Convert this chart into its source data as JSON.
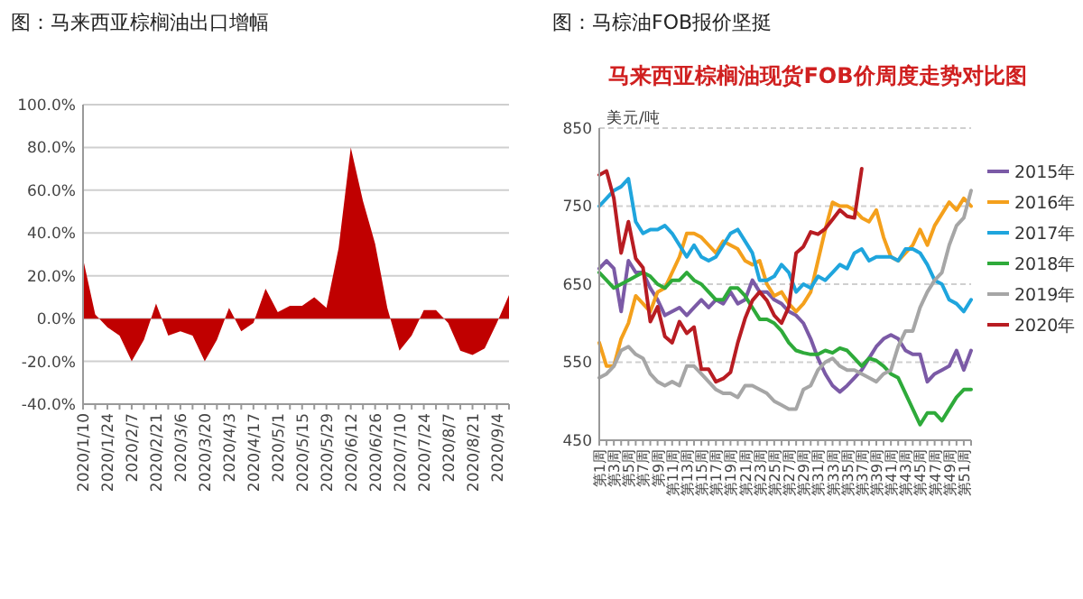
{
  "chart_data": [
    {
      "type": "area",
      "title": "图：马来西亚棕榈油出口增幅",
      "categories": [
        "2020/1/10",
        null,
        "2020/1/24",
        null,
        "2020/2/7",
        null,
        "2020/2/21",
        null,
        "2020/3/6",
        null,
        "2020/3/20",
        null,
        "2020/4/3",
        null,
        "2020/4/17",
        null,
        "2020/5/1",
        null,
        "2020/5/15",
        null,
        "2020/5/29",
        null,
        "2020/6/12",
        null,
        "2020/6/26",
        null,
        "2020/7/10",
        null,
        "2020/7/24",
        null,
        "2020/8/7",
        null,
        "2020/8/21",
        null,
        "2020/9/4",
        null
      ],
      "values": [
        28,
        2,
        -4,
        -8,
        -20,
        -10,
        7,
        -8,
        -6,
        -8,
        -20,
        -10,
        5,
        -6,
        -2,
        14,
        3,
        6,
        6,
        10,
        5,
        33,
        80,
        55,
        35,
        5,
        -15,
        -8,
        4,
        4,
        -2,
        -15,
        -17,
        -14,
        -2,
        11
      ],
      "color": "#c00000",
      "ylim": [
        -40,
        100
      ],
      "yticks": [
        {
          "value": -40,
          "label": "-40.0%"
        },
        {
          "value": -20,
          "label": "-20.0%"
        },
        {
          "value": 0,
          "label": "0.0%"
        },
        {
          "value": 20,
          "label": "20.0%"
        },
        {
          "value": 40,
          "label": "40.0%"
        },
        {
          "value": 60,
          "label": "60.0%"
        },
        {
          "value": 80,
          "label": "80.0%"
        },
        {
          "value": 100,
          "label": "100.0%"
        }
      ],
      "grid": "y"
    },
    {
      "type": "line",
      "title": "图：马棕油FOB报价坚挺",
      "subtitle": "马来西亚棕榈油现货FOB价周度走势对比图",
      "ylabel": "美元/吨",
      "categories": [
        "第1周",
        null,
        "第3周",
        null,
        "第5周",
        null,
        "第7周",
        null,
        "第9周",
        null,
        "第11周",
        null,
        "第13周",
        null,
        "第15周",
        null,
        "第17周",
        null,
        "第19周",
        null,
        "第21周",
        null,
        "第23周",
        null,
        "第25周",
        null,
        "第27周",
        null,
        "第29周",
        null,
        "第31周",
        null,
        "第33周",
        null,
        "第35周",
        null,
        "第37周",
        null,
        "第39周",
        null,
        "第41周",
        null,
        "第43周",
        null,
        "第45周",
        null,
        "第47周",
        null,
        "第49周",
        null,
        "第51周",
        null
      ],
      "series": [
        {
          "name": "2015年",
          "color": "#7b5aa6",
          "values": [
            670,
            680,
            670,
            615,
            680,
            665,
            665,
            645,
            630,
            610,
            615,
            620,
            610,
            620,
            630,
            620,
            630,
            625,
            640,
            625,
            630,
            655,
            640,
            640,
            630,
            625,
            615,
            610,
            600,
            580,
            555,
            535,
            520,
            512,
            520,
            530,
            540,
            555,
            570,
            580,
            585,
            580,
            565,
            560,
            560,
            525,
            535,
            540,
            545,
            565,
            540,
            565
          ]
        },
        {
          "name": "2016年",
          "color": "#f4a01c",
          "values": [
            575,
            545,
            545,
            580,
            600,
            635,
            625,
            615,
            640,
            645,
            665,
            685,
            715,
            715,
            710,
            700,
            690,
            705,
            700,
            695,
            680,
            675,
            680,
            650,
            635,
            640,
            625,
            615,
            625,
            640,
            680,
            720,
            755,
            750,
            750,
            745,
            735,
            730,
            745,
            710,
            685,
            680,
            690,
            700,
            720,
            700,
            725,
            740,
            755,
            745,
            760,
            750
          ]
        },
        {
          "name": "2017年",
          "color": "#1fa5dd",
          "values": [
            750,
            760,
            770,
            775,
            785,
            730,
            715,
            720,
            720,
            725,
            715,
            700,
            685,
            700,
            685,
            680,
            685,
            700,
            715,
            720,
            705,
            690,
            655,
            655,
            660,
            675,
            665,
            640,
            650,
            645,
            660,
            655,
            665,
            675,
            670,
            690,
            695,
            680,
            685,
            685,
            685,
            680,
            695,
            695,
            690,
            675,
            655,
            650,
            630,
            625,
            615,
            630
          ]
        },
        {
          "name": "2018年",
          "color": "#2eaa3a",
          "values": [
            665,
            655,
            645,
            650,
            655,
            660,
            665,
            660,
            650,
            645,
            655,
            655,
            665,
            655,
            650,
            640,
            630,
            630,
            645,
            645,
            635,
            620,
            605,
            605,
            600,
            590,
            575,
            565,
            562,
            560,
            560,
            565,
            562,
            568,
            565,
            555,
            545,
            555,
            552,
            545,
            535,
            530,
            510,
            490,
            470,
            485,
            485,
            475,
            490,
            505,
            515,
            515
          ]
        },
        {
          "name": "2019年",
          "color": "#a6a6a6",
          "values": [
            530,
            535,
            545,
            565,
            570,
            560,
            555,
            535,
            525,
            520,
            525,
            520,
            545,
            545,
            535,
            525,
            515,
            510,
            510,
            505,
            520,
            520,
            515,
            510,
            500,
            495,
            490,
            490,
            515,
            520,
            540,
            550,
            555,
            545,
            540,
            540,
            535,
            530,
            525,
            535,
            540,
            570,
            590,
            590,
            620,
            640,
            655,
            665,
            700,
            725,
            735,
            770
          ]
        },
        {
          "name": "2020年",
          "color": "#b81c22",
          "values": [
            790,
            795,
            760,
            690,
            730,
            683,
            671,
            602,
            621,
            583,
            575,
            602,
            587,
            595,
            541,
            541,
            525,
            529,
            537,
            575,
            606,
            629,
            640,
            629,
            610,
            600,
            621,
            690,
            698,
            717,
            714,
            721,
            733,
            745,
            737,
            735,
            798,
            null,
            null,
            null,
            null,
            null,
            null,
            null,
            null,
            null,
            null,
            null,
            null,
            null,
            null,
            null
          ]
        }
      ],
      "ylim": [
        450,
        850
      ],
      "yticks": [
        450,
        550,
        650,
        750,
        850
      ],
      "grid": "y",
      "legend": "right"
    }
  ]
}
